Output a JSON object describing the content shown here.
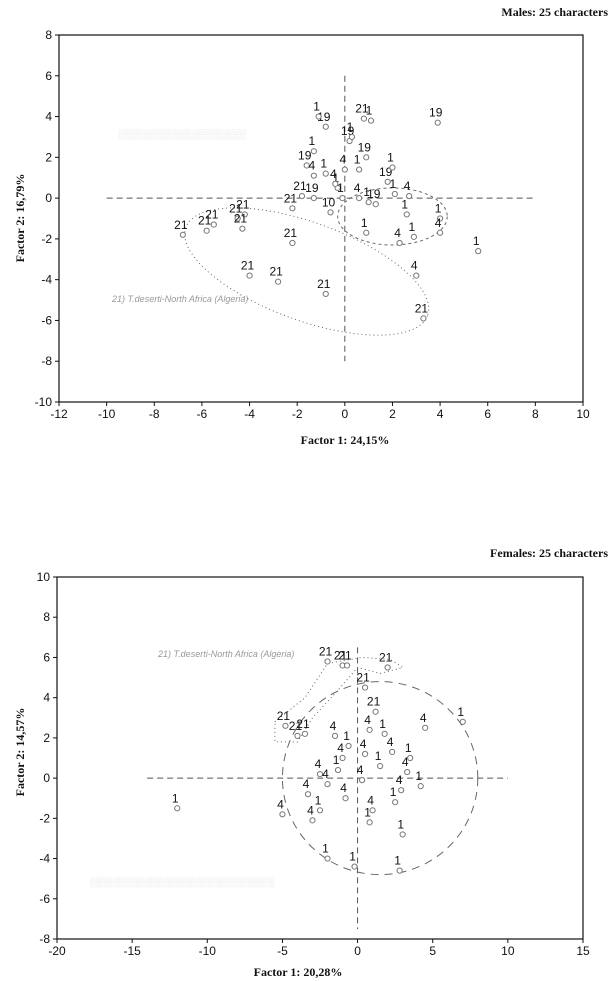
{
  "chart_data": [
    {
      "type": "scatter",
      "title": "Males: 25 characters",
      "xlabel": "Factor 1: 24,15%",
      "ylabel": "Factor 2: 16,79%",
      "xlim": [
        -12,
        10
      ],
      "ylim": [
        -10,
        8
      ],
      "xticks": [
        "-12",
        "-10",
        "-8",
        "-6",
        "-4",
        "-2",
        "0",
        "2",
        "4",
        "6",
        "8",
        "10"
      ],
      "yticks": [
        "-10",
        "-8",
        "-6",
        "-4",
        "-2",
        "0",
        "2",
        "4",
        "6",
        "8"
      ],
      "annotations": [
        "21) T.deserti-North Africa (Algeria)"
      ],
      "points": [
        {
          "label": "21",
          "x": -6.8,
          "y": -1.8
        },
        {
          "label": "21",
          "x": -5.8,
          "y": -1.6
        },
        {
          "label": "21",
          "x": -5.5,
          "y": -1.3
        },
        {
          "label": "21",
          "x": -4.5,
          "y": -1.0
        },
        {
          "label": "21",
          "x": -4.2,
          "y": -0.8
        },
        {
          "label": "21",
          "x": -4.3,
          "y": -1.5
        },
        {
          "label": "21",
          "x": -4.0,
          "y": -3.8
        },
        {
          "label": "21",
          "x": -2.8,
          "y": -4.1
        },
        {
          "label": "21",
          "x": -2.2,
          "y": -0.5
        },
        {
          "label": "21",
          "x": -2.2,
          "y": -2.2
        },
        {
          "label": "21",
          "x": -1.8,
          "y": 0.1
        },
        {
          "label": "21",
          "x": -0.8,
          "y": -4.7
        },
        {
          "label": "21",
          "x": 3.3,
          "y": -5.9
        },
        {
          "label": "21",
          "x": 0.8,
          "y": 3.9
        },
        {
          "label": "19",
          "x": 3.9,
          "y": 3.7
        },
        {
          "label": "19",
          "x": -1.6,
          "y": 1.6
        },
        {
          "label": "19",
          "x": -0.8,
          "y": 3.5
        },
        {
          "label": "19",
          "x": 0.2,
          "y": 2.8
        },
        {
          "label": "19",
          "x": 0.9,
          "y": 2.0
        },
        {
          "label": "19",
          "x": 1.8,
          "y": 0.8
        },
        {
          "label": "19",
          "x": -1.3,
          "y": 0.0
        },
        {
          "label": "19",
          "x": 1.3,
          "y": -0.3
        },
        {
          "label": "10",
          "x": -0.6,
          "y": -0.7
        },
        {
          "label": "1",
          "x": -1.1,
          "y": 4.0
        },
        {
          "label": "1",
          "x": -1.3,
          "y": 2.3
        },
        {
          "label": "1",
          "x": -0.8,
          "y": 1.2
        },
        {
          "label": "1",
          "x": -0.3,
          "y": 0.5
        },
        {
          "label": "1",
          "x": 0.3,
          "y": 3.0
        },
        {
          "label": "1",
          "x": 1.1,
          "y": 3.8
        },
        {
          "label": "1",
          "x": 2.0,
          "y": 1.5
        },
        {
          "label": "1",
          "x": 0.6,
          "y": 1.4
        },
        {
          "label": "1",
          "x": 1.0,
          "y": -0.2
        },
        {
          "label": "1",
          "x": 2.6,
          "y": -0.8
        },
        {
          "label": "1",
          "x": 0.9,
          "y": -1.7
        },
        {
          "label": "1",
          "x": 2.9,
          "y": -1.9
        },
        {
          "label": "1",
          "x": 4.0,
          "y": -1.0
        },
        {
          "label": "1",
          "x": 5.6,
          "y": -2.6
        },
        {
          "label": "1",
          "x": 2.1,
          "y": 0.2
        },
        {
          "label": "1",
          "x": -0.1,
          "y": 0.0
        },
        {
          "label": "4",
          "x": -1.3,
          "y": 1.1
        },
        {
          "label": "4",
          "x": 0.0,
          "y": 1.4
        },
        {
          "label": "4",
          "x": 2.3,
          "y": -2.2
        },
        {
          "label": "4",
          "x": 3.0,
          "y": -3.8
        },
        {
          "label": "4",
          "x": 4.0,
          "y": -1.7
        },
        {
          "label": "4",
          "x": 2.7,
          "y": 0.1
        },
        {
          "label": "4",
          "x": -0.4,
          "y": 0.7
        },
        {
          "label": "4",
          "x": 0.6,
          "y": 0.0
        }
      ]
    },
    {
      "type": "scatter",
      "title": "Females: 25 characters",
      "xlabel": "Factor 1: 20,28%",
      "ylabel": "Factor 2: 14,57%",
      "xlim": [
        -20,
        15
      ],
      "ylim": [
        -8,
        10
      ],
      "xticks": [
        "-20",
        "-15",
        "-10",
        "-5",
        "0",
        "5",
        "10",
        "15"
      ],
      "yticks": [
        "-8",
        "-6",
        "-4",
        "-2",
        "0",
        "2",
        "4",
        "6",
        "8",
        "10"
      ],
      "annotations": [
        "21) T.deserti-North Africa (Algeria)"
      ],
      "points": [
        {
          "label": "1",
          "x": -12.0,
          "y": -1.5
        },
        {
          "label": "1",
          "x": 7.0,
          "y": 2.8
        },
        {
          "label": "1",
          "x": 2.8,
          "y": -4.6
        },
        {
          "label": "1",
          "x": -0.2,
          "y": -4.4
        },
        {
          "label": "1",
          "x": -2.0,
          "y": -4.0
        },
        {
          "label": "1",
          "x": 1.5,
          "y": 0.6
        },
        {
          "label": "1",
          "x": 2.5,
          "y": -1.2
        },
        {
          "label": "1",
          "x": -1.3,
          "y": 0.4
        },
        {
          "label": "1",
          "x": 3.5,
          "y": 1.0
        },
        {
          "label": "1",
          "x": 0.8,
          "y": -2.2
        },
        {
          "label": "1",
          "x": 4.2,
          "y": -0.4
        },
        {
          "label": "1",
          "x": -2.5,
          "y": -1.6
        },
        {
          "label": "1",
          "x": 1.8,
          "y": 2.2
        },
        {
          "label": "1",
          "x": -0.6,
          "y": 1.6
        },
        {
          "label": "1",
          "x": 3.0,
          "y": -2.8
        },
        {
          "label": "21",
          "x": -2.0,
          "y": 5.8
        },
        {
          "label": "21",
          "x": -1.0,
          "y": 5.6
        },
        {
          "label": "21",
          "x": -0.7,
          "y": 5.6
        },
        {
          "label": "21",
          "x": 0.5,
          "y": 4.5
        },
        {
          "label": "21",
          "x": 2.0,
          "y": 5.5
        },
        {
          "label": "21",
          "x": -4.8,
          "y": 2.6
        },
        {
          "label": "21",
          "x": -3.5,
          "y": 2.2
        },
        {
          "label": "21",
          "x": -4.0,
          "y": 2.1
        },
        {
          "label": "21",
          "x": 1.2,
          "y": 3.3
        },
        {
          "label": "4",
          "x": -5.0,
          "y": -1.8
        },
        {
          "label": "4",
          "x": -3.0,
          "y": -2.1
        },
        {
          "label": "4",
          "x": 4.5,
          "y": 2.5
        },
        {
          "label": "4",
          "x": -1.5,
          "y": 2.1
        },
        {
          "label": "4",
          "x": 0.8,
          "y": 2.4
        },
        {
          "label": "4",
          "x": -2.5,
          "y": 0.2
        },
        {
          "label": "4",
          "x": 2.3,
          "y": 1.3
        },
        {
          "label": "4",
          "x": -0.8,
          "y": -1.0
        },
        {
          "label": "4",
          "x": 3.3,
          "y": 0.3
        },
        {
          "label": "4",
          "x": -3.3,
          "y": -0.8
        },
        {
          "label": "4",
          "x": 0.3,
          "y": -0.1
        },
        {
          "label": "4",
          "x": 1.0,
          "y": -1.6
        },
        {
          "label": "4",
          "x": -1.0,
          "y": 1.0
        },
        {
          "label": "4",
          "x": 2.9,
          "y": -0.6
        },
        {
          "label": "4",
          "x": 0.5,
          "y": 1.2
        },
        {
          "label": "4",
          "x": -2.0,
          "y": -0.3
        }
      ]
    }
  ]
}
